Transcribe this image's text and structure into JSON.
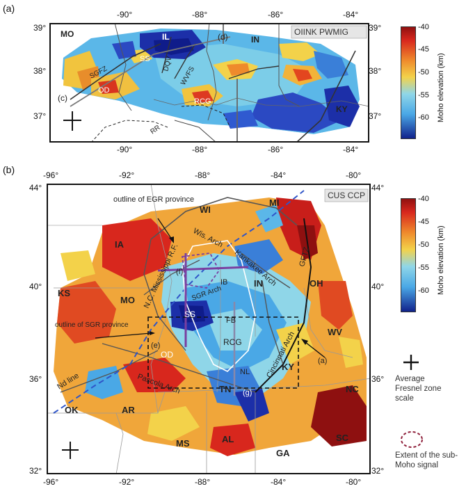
{
  "panel_a": {
    "label": "(a)",
    "title_box": "OIINK PWMIG",
    "lon_ticks": [
      "-90°",
      "-88°",
      "-86°",
      "-84°"
    ],
    "lat_ticks": [
      "39°",
      "38°",
      "37°"
    ],
    "labels": {
      "MO": "MO",
      "IL": "IL",
      "IN": "IN",
      "KY": "KY",
      "SS": "SS",
      "SGFZ": "SGFZ",
      "DQV": "DQV",
      "WVFS": "WVFS",
      "OD": "OD",
      "RCG": "RCG",
      "RR": "RR",
      "c": "(c)",
      "d": "(d)"
    },
    "colorbar": {
      "title": "Moho elevation (km)",
      "ticks": [
        "-40",
        "-45",
        "-50",
        "-55",
        "-60"
      ]
    }
  },
  "panel_b": {
    "label": "(b)",
    "title_box": "CUS CCP",
    "lon_ticks": [
      "-96°",
      "-92°",
      "-88°",
      "-84°",
      "-80°"
    ],
    "lat_ticks": [
      "44°",
      "40°",
      "36°",
      "32°"
    ],
    "labels": {
      "WI": "WI",
      "MI": "MI",
      "IA": "IA",
      "KS": "KS",
      "MO": "MO",
      "IN": "IN",
      "OH": "OH",
      "WV": "WV",
      "KY": "KY",
      "OK": "OK",
      "AR": "AR",
      "TN": "TN",
      "NC": "NC",
      "MS": "MS",
      "AL": "AL",
      "GA": "GA",
      "SC": "SC",
      "SS": "SS",
      "OD": "OD",
      "RCG": "RCG",
      "FB": "FB",
      "IB": "IB",
      "NL": "NL",
      "GFTZ": "GFTZ",
      "g": "(g)",
      "a": "(a)",
      "e": "(e)",
      "f": "(f)",
      "egr": "outline of EGR province",
      "sgr": "outline of SGR province",
      "wis_arch": "Wis. Arch",
      "kank_arch": "Kankakee Arch",
      "nc_mrf": "N.C. Mississippi R.F.",
      "cinc_arch": "Cincinnati Arch",
      "pasc_arch": "Pascola Arch",
      "nd_line": "Nd line",
      "sgr_arch": "SGR Arch"
    },
    "colorbar": {
      "title": "Moho elevation (km)",
      "ticks": [
        "-40",
        "-45",
        "-50",
        "-55",
        "-60"
      ]
    }
  },
  "legend": {
    "fresnel": "Average Fresnel zone scale",
    "submoho": "Extent of the sub-Moho signal"
  },
  "colors": {
    "deep_blue": "#1c2fa8",
    "light_blue": "#4aa8e6",
    "cyan": "#8fd6e8",
    "yellow": "#f3d24a",
    "orange": "#ef8a2c",
    "red": "#d8271d",
    "dark_red": "#8e1010",
    "nd_line": "#2f55c8",
    "profile": "#7a3fa0"
  }
}
